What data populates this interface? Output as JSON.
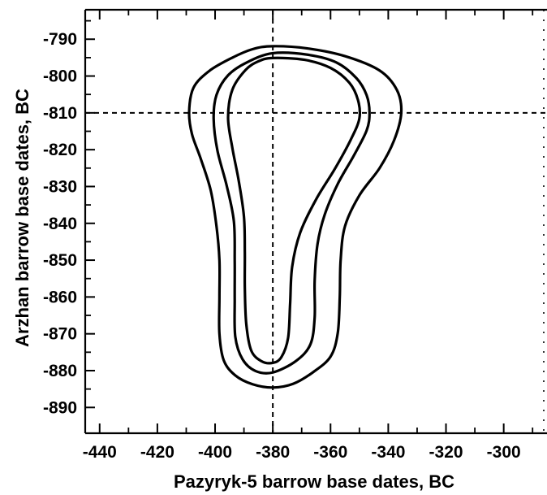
{
  "chart_data": {
    "type": "contour",
    "title": "",
    "xlabel": "Pazyryk-5 barrow base dates, BC",
    "ylabel": "Arzhan barrow base dates, BC",
    "xlim": [
      -445,
      -285
    ],
    "ylim": [
      -897,
      -782
    ],
    "x_ticks": [
      -440,
      -420,
      -400,
      -380,
      -360,
      -340,
      -320,
      -300
    ],
    "y_ticks": [
      -790,
      -800,
      -810,
      -820,
      -830,
      -840,
      -850,
      -860,
      -870,
      -880,
      -890
    ],
    "x_tick_labels": [
      "-440",
      "-420",
      "-400",
      "-380",
      "-360",
      "-340",
      "-320",
      "-300"
    ],
    "y_tick_labels": [
      "-790",
      "-800",
      "-810",
      "-820",
      "-830",
      "-840",
      "-850",
      "-860",
      "-870",
      "-880",
      "-890"
    ],
    "reference_lines": {
      "x": -380,
      "y": -810,
      "style": "dashed"
    },
    "grid": false,
    "legend": "none",
    "colors": {
      "line": "#000000",
      "background": "#ffffff"
    },
    "contours": [
      {
        "level": "outer",
        "points": [
          [
            -380,
            -791.9
          ],
          [
            -368,
            -792.5
          ],
          [
            -355,
            -794.6
          ],
          [
            -343,
            -798.5
          ],
          [
            -337,
            -803.8
          ],
          [
            -335.5,
            -810
          ],
          [
            -338,
            -817.5
          ],
          [
            -343,
            -825
          ],
          [
            -350,
            -832.4
          ],
          [
            -355,
            -840.8
          ],
          [
            -356.5,
            -850
          ],
          [
            -356.8,
            -860
          ],
          [
            -357.5,
            -869.8
          ],
          [
            -360,
            -876.2
          ],
          [
            -366,
            -880.4
          ],
          [
            -373,
            -883.6
          ],
          [
            -380,
            -884.6
          ],
          [
            -387,
            -883.7
          ],
          [
            -393,
            -881.3
          ],
          [
            -397,
            -877.2
          ],
          [
            -398.5,
            -870
          ],
          [
            -398.5,
            -860
          ],
          [
            -398.5,
            -850
          ],
          [
            -399.5,
            -840.9
          ],
          [
            -401.5,
            -831.1
          ],
          [
            -405,
            -822.4
          ],
          [
            -408,
            -815.8
          ],
          [
            -409,
            -809.8
          ],
          [
            -407.5,
            -803.2
          ],
          [
            -402,
            -798.6
          ],
          [
            -394,
            -795
          ],
          [
            -387,
            -792.7
          ]
        ]
      },
      {
        "level": "middle",
        "points": [
          [
            -380,
            -793.8
          ],
          [
            -368,
            -794.2
          ],
          [
            -358,
            -796.3
          ],
          [
            -351,
            -800.6
          ],
          [
            -347.5,
            -805.2
          ],
          [
            -346.5,
            -810
          ],
          [
            -347.5,
            -814.8
          ],
          [
            -352,
            -821.7
          ],
          [
            -357.5,
            -829.3
          ],
          [
            -362,
            -837.6
          ],
          [
            -364.5,
            -845.6
          ],
          [
            -365.5,
            -855.6
          ],
          [
            -365.5,
            -865.6
          ],
          [
            -367,
            -872.9
          ],
          [
            -372,
            -877.4
          ],
          [
            -380,
            -880.5
          ],
          [
            -386,
            -880.1
          ],
          [
            -390.5,
            -876.9
          ],
          [
            -393,
            -870.8
          ],
          [
            -393.2,
            -860.5
          ],
          [
            -393.2,
            -850.2
          ],
          [
            -393.5,
            -839.4
          ],
          [
            -396,
            -829.7
          ],
          [
            -399.2,
            -820.2
          ],
          [
            -400.5,
            -811.6
          ],
          [
            -399.5,
            -805.1
          ],
          [
            -395.5,
            -799.8
          ],
          [
            -389,
            -796.3
          ]
        ]
      },
      {
        "level": "inner",
        "points": [
          [
            -380,
            -795.1
          ],
          [
            -369,
            -795.6
          ],
          [
            -360,
            -797.8
          ],
          [
            -353.5,
            -801.8
          ],
          [
            -350.5,
            -806.5
          ],
          [
            -350,
            -811.5
          ],
          [
            -353,
            -817.3
          ],
          [
            -358.5,
            -825.2
          ],
          [
            -365,
            -833.5
          ],
          [
            -370.5,
            -842.5
          ],
          [
            -373.3,
            -851.8
          ],
          [
            -374,
            -861.8
          ],
          [
            -374.7,
            -871.1
          ],
          [
            -377,
            -876.3
          ],
          [
            -380,
            -877.9
          ],
          [
            -384,
            -877.4
          ],
          [
            -387.5,
            -874.5
          ],
          [
            -389.2,
            -867.3
          ],
          [
            -389.7,
            -857.5
          ],
          [
            -389.7,
            -847.8
          ],
          [
            -390,
            -838.2
          ],
          [
            -391.8,
            -828.5
          ],
          [
            -394,
            -819.6
          ],
          [
            -395.5,
            -811.3
          ],
          [
            -394,
            -803.7
          ],
          [
            -389.5,
            -798.4
          ],
          [
            -385,
            -796
          ]
        ]
      }
    ]
  }
}
